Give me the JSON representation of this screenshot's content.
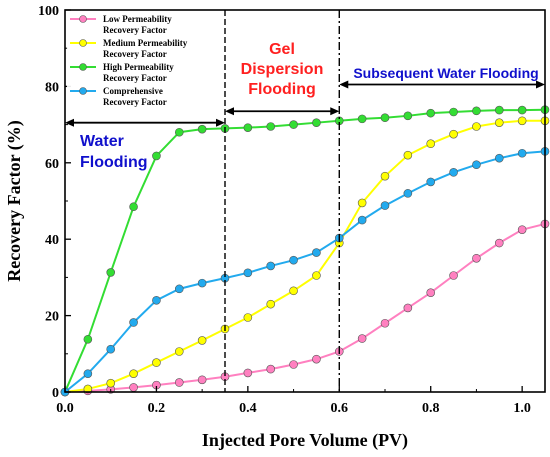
{
  "chart_data": {
    "type": "line",
    "xlabel": "Injected Pore Volume (PV)",
    "ylabel": "Recovery Factor (%)",
    "xlim": [
      0,
      1.05
    ],
    "ylim": [
      0,
      100
    ],
    "xticks": [
      0.0,
      0.2,
      0.4,
      0.6,
      0.8,
      1.0
    ],
    "xtick_labels": [
      "0.0",
      "0.2",
      "0.4",
      "0.6",
      "0.8",
      "1.0"
    ],
    "yticks": [
      0,
      20,
      40,
      60,
      80,
      100
    ],
    "ytick_labels": [
      "0",
      "20",
      "40",
      "60",
      "80",
      "100"
    ],
    "grid": false,
    "legend_position": "top-left",
    "x": [
      0,
      0.05,
      0.1,
      0.15,
      0.2,
      0.25,
      0.3,
      0.35,
      0.4,
      0.45,
      0.5,
      0.55,
      0.6,
      0.65,
      0.7,
      0.75,
      0.8,
      0.85,
      0.9,
      0.95,
      1.0,
      1.05
    ],
    "series": [
      {
        "name": "Low Permeability Recovery Factor",
        "name_lines": [
          "Low Permeability",
          "Recovery Factor"
        ],
        "color": "#ff80c0",
        "values": [
          0,
          0.3,
          0.7,
          1.2,
          1.8,
          2.5,
          3.2,
          4.0,
          5.0,
          6.0,
          7.2,
          8.6,
          10.6,
          14.0,
          18.0,
          22.0,
          26.0,
          30.5,
          35.0,
          39.0,
          42.5,
          44.0
        ]
      },
      {
        "name": "Medium Permeability Recovery Factor",
        "name_lines": [
          "Medium Permeability",
          "Recovery Factor"
        ],
        "color": "#ffff00",
        "values": [
          0,
          0.8,
          2.3,
          4.8,
          7.7,
          10.6,
          13.5,
          16.5,
          19.5,
          23.0,
          26.5,
          30.5,
          39.0,
          49.5,
          56.5,
          62.0,
          65.0,
          67.5,
          69.5,
          70.5,
          71.0,
          71.0
        ]
      },
      {
        "name": "High Permeability Recovery Factor",
        "name_lines": [
          "High Permeability",
          "Recovery Factor"
        ],
        "color": "#33dd33",
        "values": [
          0,
          13.8,
          31.3,
          48.5,
          61.8,
          68.0,
          68.8,
          69.0,
          69.2,
          69.5,
          70.0,
          70.5,
          71.0,
          71.5,
          71.8,
          72.3,
          73.0,
          73.3,
          73.6,
          73.8,
          73.8,
          73.9
        ]
      },
      {
        "name": "Comprehensive Recovery Factor",
        "name_lines": [
          "Comprehensive",
          "Recovery Factor"
        ],
        "color": "#22aaee",
        "values": [
          0,
          4.8,
          11.2,
          18.2,
          24.0,
          27.0,
          28.5,
          29.8,
          31.2,
          33.0,
          34.5,
          36.5,
          40.3,
          45.0,
          48.8,
          52.0,
          55.0,
          57.5,
          59.5,
          61.2,
          62.5,
          63.0
        ]
      }
    ],
    "dividers": [
      0.35,
      0.6
    ],
    "annotations": [
      {
        "id": "water",
        "lines": [
          "Water",
          "Flooding"
        ],
        "color": "#1010cc"
      },
      {
        "id": "gel",
        "lines": [
          "Gel",
          "Dispersion",
          "Flooding"
        ],
        "color": "#ff2020"
      },
      {
        "id": "subsequent",
        "lines": [
          "Subsequent Water Flooding"
        ],
        "color": "#1010cc"
      }
    ],
    "arrows": [
      {
        "from": 0.0,
        "to": 0.35,
        "y": 70.5
      },
      {
        "from": 0.35,
        "to": 0.6,
        "y": 73.5
      },
      {
        "from": 0.6,
        "to": 1.05,
        "y": 80.5
      }
    ]
  }
}
